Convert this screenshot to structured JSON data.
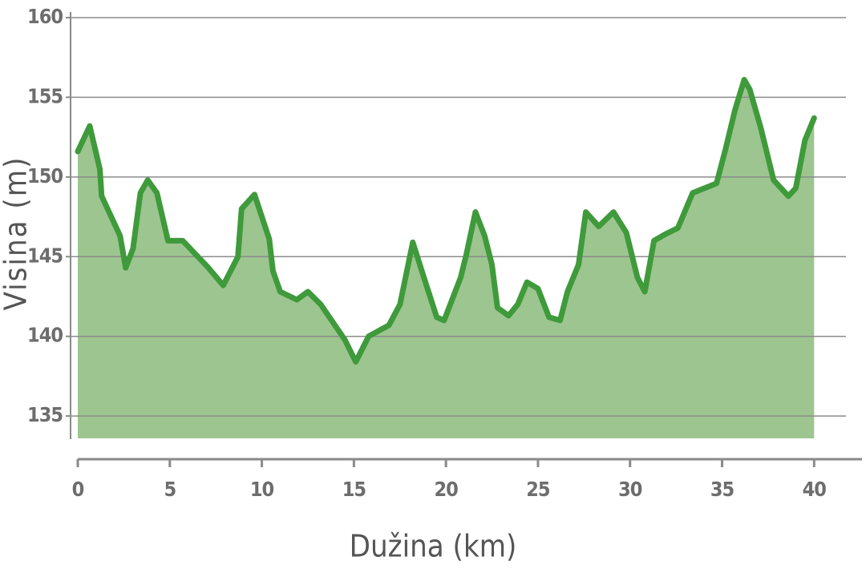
{
  "chart_data": {
    "type": "area",
    "x_label": "Dužina (km)",
    "y_label": "Visina (m)",
    "x": [
      0,
      0.65,
      1.2,
      1.3,
      2.3,
      2.6,
      3.0,
      3.4,
      3.8,
      4.3,
      4.9,
      5.7,
      7.1,
      7.9,
      8.7,
      8.9,
      9.6,
      10.4,
      10.6,
      11.0,
      11.9,
      12.5,
      13.2,
      14.5,
      15.1,
      15.8,
      16.9,
      17.5,
      18.2,
      18.8,
      19.5,
      19.9,
      20.8,
      21.1,
      21.6,
      22.1,
      22.5,
      22.8,
      23.4,
      23.9,
      24.4,
      25.0,
      25.6,
      26.2,
      26.6,
      27.2,
      27.6,
      28.3,
      29.1,
      29.8,
      30.4,
      30.8,
      31.3,
      31.9,
      32.6,
      33.4,
      34.7,
      35.2,
      35.7,
      36.2,
      36.5,
      37.1,
      37.8,
      38.6,
      39.0,
      39.5,
      40
    ],
    "series": [
      {
        "color": "#3f9a3b",
        "fill": "#9dc58f",
        "values": [
          151.6,
          153.2,
          150.5,
          148.8,
          146.3,
          144.3,
          145.5,
          149.0,
          149.8,
          149.0,
          146.0,
          146.0,
          144.3,
          143.2,
          145.0,
          148.0,
          148.9,
          146.1,
          144.1,
          142.8,
          142.3,
          142.8,
          142.0,
          139.8,
          138.4,
          140.0,
          140.7,
          142.0,
          145.9,
          143.7,
          141.2,
          141.0,
          143.7,
          145.1,
          147.8,
          146.3,
          144.5,
          141.8,
          141.3,
          142.0,
          143.4,
          143.0,
          141.2,
          141.0,
          142.8,
          144.5,
          147.8,
          146.9,
          147.8,
          146.5,
          143.7,
          142.8,
          146.0,
          146.4,
          146.8,
          149.0,
          149.6,
          151.8,
          154.2,
          156.1,
          155.5,
          153.1,
          149.8,
          148.8,
          149.3,
          152.3,
          153.7
        ]
      }
    ],
    "xlim": [
      0,
      42.6
    ],
    "ylim": [
      133.6,
      160.3
    ],
    "xticks": [
      0,
      5,
      10,
      15,
      20,
      25,
      30,
      35,
      40
    ],
    "yticks": [
      135,
      140,
      145,
      150,
      155,
      160
    ],
    "grid": true
  }
}
